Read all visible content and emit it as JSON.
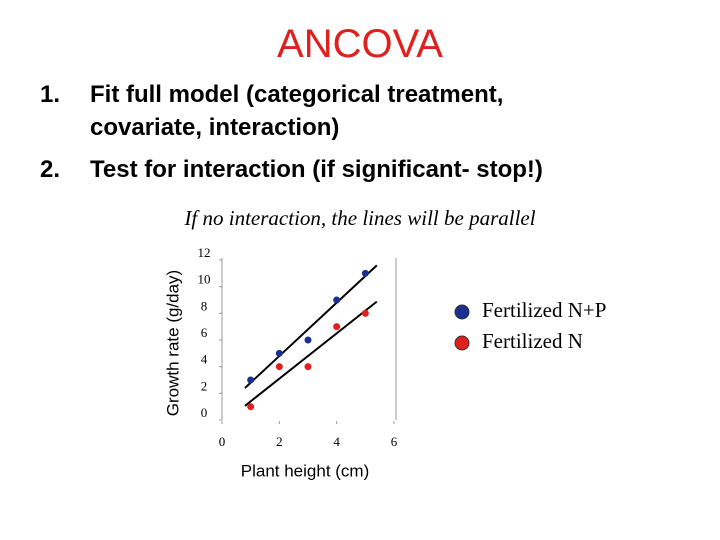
{
  "slide": {
    "title": "ANCOVA",
    "items": [
      {
        "number": "1.",
        "text": "Fit full model (categorical treatment, covariate, interaction)"
      },
      {
        "number": "2.",
        "text": "Test for interaction (if significant- stop!)"
      }
    ],
    "note": "If no interaction, the lines will be parallel"
  },
  "chart_data": {
    "type": "scatter",
    "x_label": "Plant height (cm)",
    "y_label": "Growth rate (g/day)",
    "xlim": [
      0,
      6
    ],
    "xticks": [
      0,
      2,
      4,
      6
    ],
    "ylim": [
      0,
      12
    ],
    "yticks": [
      0,
      2,
      4,
      6,
      8,
      10,
      12
    ],
    "legend": "right",
    "trendline": true,
    "series": [
      {
        "name": "Fertilized N+P",
        "color": "#1a2f8f",
        "x": [
          1,
          2,
          3,
          4,
          5
        ],
        "values": [
          3,
          5,
          6,
          9,
          11
        ]
      },
      {
        "name": "Fertilized N",
        "color": "#e0201c",
        "x": [
          1,
          2,
          3,
          4,
          5
        ],
        "values": [
          1,
          4,
          4,
          7,
          8
        ]
      }
    ]
  }
}
